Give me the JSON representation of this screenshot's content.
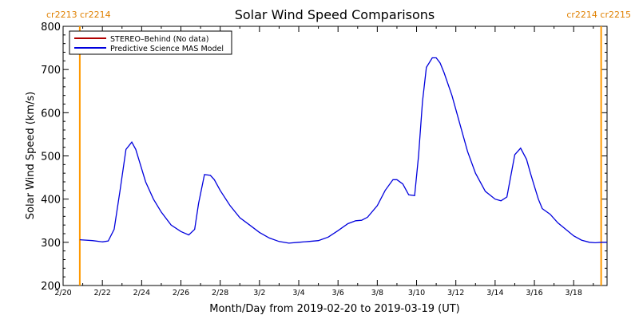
{
  "chart_data": {
    "type": "line",
    "title": "Solar Wind Speed Comparisons",
    "xlabel": "Month/Day from 2019-02-20 to 2019-03-19 (UT)",
    "ylabel": "Solar Wind Speed (km/s)",
    "ylim": [
      200,
      800
    ],
    "xlim": [
      0,
      27.7
    ],
    "grid": false,
    "legend_position": "top-left",
    "y_ticks": [
      200,
      300,
      400,
      500,
      600,
      700,
      800
    ],
    "x_ticks": [
      {
        "day": 0,
        "label": "2/20"
      },
      {
        "day": 2,
        "label": "2/22"
      },
      {
        "day": 4,
        "label": "2/24"
      },
      {
        "day": 6,
        "label": "2/26"
      },
      {
        "day": 8,
        "label": "2/28"
      },
      {
        "day": 10,
        "label": "3/2"
      },
      {
        "day": 12,
        "label": "3/4"
      },
      {
        "day": 14,
        "label": "3/6"
      },
      {
        "day": 16,
        "label": "3/8"
      },
      {
        "day": 18,
        "label": "3/10"
      },
      {
        "day": 20,
        "label": "3/12"
      },
      {
        "day": 22,
        "label": "3/14"
      },
      {
        "day": 24,
        "label": "3/16"
      },
      {
        "day": 26,
        "label": "3/18"
      }
    ],
    "carrington_markers": [
      {
        "day": 0.85,
        "left_label": "cr2213",
        "right_label": "cr2214",
        "label_side": "left"
      },
      {
        "day": 27.4,
        "left_label": "cr2214",
        "right_label": "cr2215",
        "label_side": "right"
      }
    ],
    "series": [
      {
        "name": "STEREO–Behind (No data)",
        "color": "#b00000",
        "x": [],
        "y": []
      },
      {
        "name": "Predictive Science MAS Model",
        "color": "#0000dd",
        "x": [
          0.85,
          1.5,
          2.0,
          2.3,
          2.6,
          2.9,
          3.2,
          3.5,
          3.7,
          3.9,
          4.2,
          4.6,
          5.0,
          5.5,
          6.0,
          6.4,
          6.7,
          6.9,
          7.2,
          7.5,
          7.7,
          8.0,
          8.5,
          9.0,
          9.5,
          10.0,
          10.5,
          11.0,
          11.5,
          12.0,
          12.5,
          13.0,
          13.5,
          14.0,
          14.5,
          14.9,
          15.2,
          15.5,
          16.0,
          16.4,
          16.8,
          17.0,
          17.3,
          17.6,
          17.9,
          18.1,
          18.3,
          18.5,
          18.8,
          19.0,
          19.2,
          19.4,
          19.8,
          20.2,
          20.6,
          21.0,
          21.5,
          22.0,
          22.3,
          22.6,
          23.0,
          23.3,
          23.6,
          23.8,
          24.0,
          24.2,
          24.4,
          24.8,
          25.2,
          25.6,
          26.0,
          26.4,
          26.8,
          27.1,
          27.4,
          27.7
        ],
        "y": [
          306,
          304,
          301,
          303,
          330,
          420,
          515,
          532,
          515,
          485,
          440,
          400,
          370,
          340,
          325,
          317,
          330,
          390,
          457,
          455,
          445,
          420,
          385,
          357,
          340,
          323,
          310,
          302,
          298,
          300,
          302,
          304,
          312,
          327,
          343,
          350,
          351,
          358,
          385,
          420,
          445,
          445,
          435,
          410,
          408,
          500,
          625,
          705,
          727,
          727,
          715,
          693,
          640,
          575,
          510,
          460,
          418,
          400,
          396,
          405,
          503,
          518,
          492,
          460,
          430,
          400,
          378,
          365,
          345,
          330,
          315,
          305,
          300,
          299,
          300,
          300
        ]
      }
    ]
  }
}
